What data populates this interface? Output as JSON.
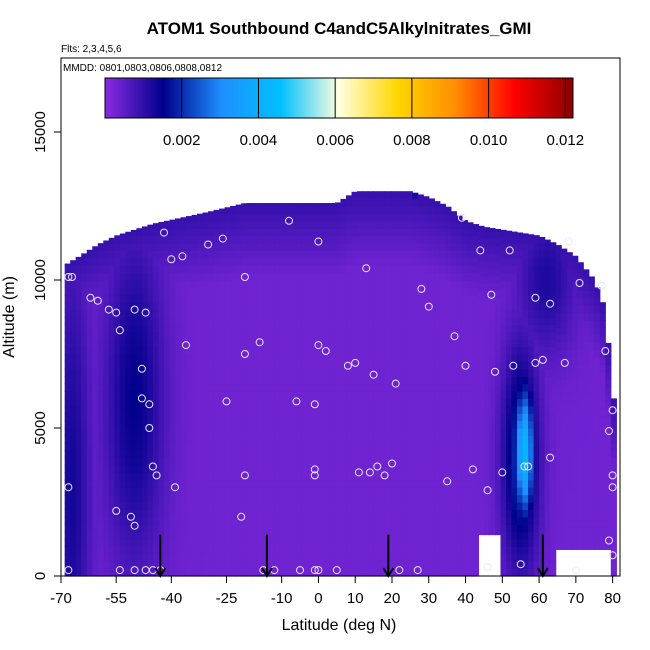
{
  "chart_data": {
    "type": "heatmap",
    "title": "ATOM1 Southbound C4andC5Alkylnitrates_GMI",
    "flights_note": "Flts: 2,3,4,5,6",
    "dates_note": "MMDD: 0801,0803,0806,0808,0812",
    "xlabel": "Latitude (deg N)",
    "ylabel": "Altitude (m)",
    "xlim": [
      -70,
      82
    ],
    "ylim": [
      0,
      17500
    ],
    "x_ticks": [
      "-70",
      "-55",
      "-40",
      "-25",
      "-10",
      "0",
      "10",
      "20",
      "30",
      "40",
      "50",
      "60",
      "70",
      "80"
    ],
    "x_tick_values": [
      -70,
      -55,
      -40,
      -25,
      -10,
      0,
      10,
      20,
      30,
      40,
      50,
      60,
      70,
      80
    ],
    "y_ticks": [
      "0",
      "5000",
      "10000",
      "15000"
    ],
    "y_tick_values": [
      0,
      5000,
      10000,
      15000
    ],
    "colorbar": {
      "range": [
        0,
        0.0122
      ],
      "ticks": [
        "0.002",
        "0.004",
        "0.006",
        "0.008",
        "0.010",
        "0.012"
      ],
      "tick_values": [
        0.002,
        0.004,
        0.006,
        0.008,
        0.01,
        0.012
      ],
      "colors": [
        "#8a2be2",
        "#00008b",
        "#1e90ff",
        "#00bfff",
        "#ffffe0",
        "#ffd700",
        "#ff8c00",
        "#ff0000",
        "#8b0000"
      ]
    },
    "field": {
      "lat_range": [
        -69,
        80
      ],
      "alt_max_by_lat": [
        [
          -69,
          10500
        ],
        [
          -65,
          10800
        ],
        [
          -60,
          11200
        ],
        [
          -55,
          11500
        ],
        [
          -45,
          11900
        ],
        [
          -30,
          12300
        ],
        [
          -20,
          12600
        ],
        [
          -5,
          12600
        ],
        [
          5,
          12600
        ],
        [
          10,
          13000
        ],
        [
          15,
          13000
        ],
        [
          20,
          13000
        ],
        [
          25,
          13000
        ],
        [
          30,
          12800
        ],
        [
          35,
          12500
        ],
        [
          40,
          12000
        ],
        [
          45,
          11800
        ],
        [
          50,
          11700
        ],
        [
          55,
          11600
        ],
        [
          60,
          11500
        ],
        [
          65,
          11200
        ],
        [
          70,
          10800
        ],
        [
          75,
          10000
        ],
        [
          78,
          9000
        ],
        [
          80,
          6000
        ]
      ],
      "background_value": 0.0003,
      "high_altitude_cap_value": 0.0011,
      "gaps": [
        [
          43,
          49,
          1400
        ],
        [
          64,
          80,
          900
        ]
      ],
      "features": [
        {
          "name": "southern-band",
          "lat": -50,
          "alt": 6000,
          "lat_width": 8,
          "alt_width": 5500,
          "value": 0.0015
        },
        {
          "name": "polar-south",
          "lat": -67,
          "alt": 3000,
          "lat_width": 5,
          "alt_width": 8000,
          "value": 0.0013
        },
        {
          "name": "northern-plume",
          "lat": 56,
          "alt": 4200,
          "lat_width": 2.5,
          "alt_width": 2200,
          "value": 0.0043
        },
        {
          "name": "northern-plume-base",
          "lat": 55,
          "alt": 4000,
          "lat_width": 5,
          "alt_width": 3800,
          "value": 0.0021
        },
        {
          "name": "northern-upper",
          "lat": 62,
          "alt": 10000,
          "lat_width": 8,
          "alt_width": 2500,
          "value": 0.0012
        },
        {
          "name": "spike-27N",
          "lat": 26.5,
          "alt": 13200,
          "lat_width": 0.6,
          "alt_width": 600,
          "value": 0.0018
        }
      ]
    },
    "observation_points": [
      [
        -68,
        10100
      ],
      [
        -67,
        10100
      ],
      [
        -68,
        3000
      ],
      [
        -68,
        200
      ],
      [
        -62,
        9400
      ],
      [
        -60,
        9300
      ],
      [
        -57,
        9000
      ],
      [
        -55,
        8900
      ],
      [
        -54,
        8300
      ],
      [
        -50,
        9000
      ],
      [
        -47,
        8900
      ],
      [
        -48,
        7000
      ],
      [
        -46,
        5800
      ],
      [
        -46,
        5000
      ],
      [
        -45,
        3700
      ],
      [
        -44,
        3400
      ],
      [
        -48,
        6000
      ],
      [
        -55,
        2200
      ],
      [
        -51,
        2000
      ],
      [
        -50,
        1700
      ],
      [
        -54,
        200
      ],
      [
        -50,
        200
      ],
      [
        -47,
        200
      ],
      [
        -45,
        200
      ],
      [
        -43,
        200
      ],
      [
        -42,
        11600
      ],
      [
        -40,
        10700
      ],
      [
        -37,
        10800
      ],
      [
        -36,
        7800
      ],
      [
        -39,
        3000
      ],
      [
        -30,
        11200
      ],
      [
        -26,
        11400
      ],
      [
        -20,
        7500
      ],
      [
        -20,
        10100
      ],
      [
        -25,
        5900
      ],
      [
        -16,
        7900
      ],
      [
        -20,
        3400
      ],
      [
        -21,
        2000
      ],
      [
        -15,
        200
      ],
      [
        -12,
        200
      ],
      [
        -8,
        12000
      ],
      [
        -6,
        5900
      ],
      [
        -1,
        5800
      ],
      [
        -1,
        3400
      ],
      [
        -1,
        3600
      ],
      [
        0,
        7800
      ],
      [
        0,
        11300
      ],
      [
        2,
        7600
      ],
      [
        -1,
        200
      ],
      [
        0,
        200
      ],
      [
        -5,
        200
      ],
      [
        5,
        200
      ],
      [
        8,
        7100
      ],
      [
        10,
        7200
      ],
      [
        13,
        10400
      ],
      [
        11,
        3500
      ],
      [
        14,
        3500
      ],
      [
        15,
        6800
      ],
      [
        16,
        3700
      ],
      [
        18,
        3400
      ],
      [
        20,
        3800
      ],
      [
        21,
        6500
      ],
      [
        22,
        200
      ],
      [
        27,
        200
      ],
      [
        28,
        9700
      ],
      [
        30,
        9100
      ],
      [
        35,
        3200
      ],
      [
        37,
        8100
      ],
      [
        39,
        12100
      ],
      [
        40,
        7100
      ],
      [
        42,
        3600
      ],
      [
        44,
        11000
      ],
      [
        46,
        2900
      ],
      [
        46,
        300
      ],
      [
        47,
        9500
      ],
      [
        48,
        6900
      ],
      [
        50,
        3500
      ],
      [
        52,
        11000
      ],
      [
        53,
        7100
      ],
      [
        56,
        3700
      ],
      [
        57,
        3700
      ],
      [
        55,
        400
      ],
      [
        59,
        9400
      ],
      [
        59,
        7200
      ],
      [
        61,
        7300
      ],
      [
        63,
        9200
      ],
      [
        63,
        4000
      ],
      [
        67,
        7200
      ],
      [
        68,
        11300
      ],
      [
        71,
        9900
      ],
      [
        77,
        9800
      ],
      [
        78,
        7600
      ],
      [
        80,
        5600
      ],
      [
        79,
        4900
      ],
      [
        80,
        3400
      ],
      [
        80,
        3000
      ],
      [
        79,
        1200
      ],
      [
        80,
        700
      ],
      [
        70,
        200
      ]
    ],
    "flight_arrows": [
      -43,
      -14,
      19,
      61
    ]
  }
}
